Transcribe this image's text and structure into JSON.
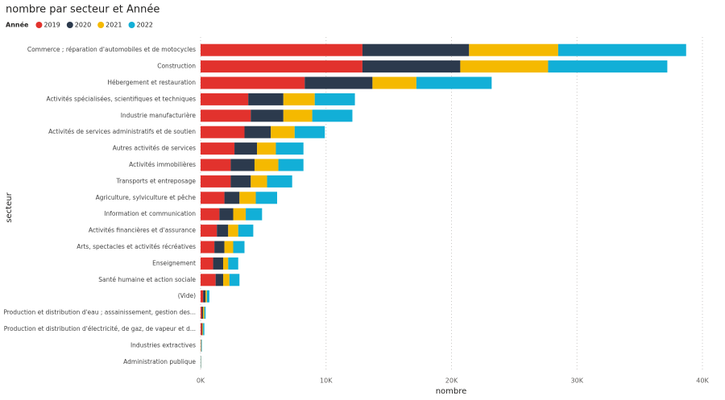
{
  "chart_data": {
    "type": "bar",
    "orientation": "horizontal",
    "stacked": true,
    "title": "nombre par secteur et Année",
    "legend_title": "Année",
    "x_label": "nombre",
    "y_label": "secteur",
    "categories": [
      "Commerce ; réparation d'automobiles et de motocycles",
      "Construction",
      "Hébergement et restauration",
      "Activités spécialisées, scientifiques et techniques",
      "Industrie manufacturière",
      "Activités de services administratifs et de soutien",
      "Autres activités de services",
      "Activités immobilières",
      "Transports et entreposage",
      "Agriculture, sylviculture et pêche",
      "Information et communication",
      "Activités financières et d'assurance",
      "Arts, spectacles et activités récréatives",
      "Enseignement",
      "Santé humaine et action sociale",
      "(Vide)",
      "Production et distribution d'eau ; assainissement, gestion des...",
      "Production et distribution d'électricité, de gaz, de vapeur et d...",
      "Industries extractives",
      "Administration publique"
    ],
    "series": [
      {
        "name": "2019",
        "color": "#e2322d",
        "values": [
          12900,
          12900,
          8300,
          3800,
          4000,
          3500,
          2700,
          2400,
          2400,
          1900,
          1500,
          1300,
          1100,
          1000,
          1200,
          200,
          100,
          100,
          20,
          10
        ]
      },
      {
        "name": "2020",
        "color": "#2c3a4d",
        "values": [
          8500,
          7800,
          5400,
          2800,
          2600,
          2100,
          1800,
          1900,
          1600,
          1200,
          1100,
          900,
          800,
          800,
          600,
          200,
          100,
          50,
          20,
          10
        ]
      },
      {
        "name": "2021",
        "color": "#f5b900",
        "values": [
          7100,
          7000,
          3500,
          2500,
          2300,
          1900,
          1500,
          1900,
          1300,
          1300,
          1000,
          800,
          700,
          400,
          500,
          100,
          100,
          50,
          20,
          10
        ]
      },
      {
        "name": "2022",
        "color": "#12afd7",
        "values": [
          10200,
          9500,
          6000,
          3200,
          3200,
          2400,
          2200,
          2000,
          2000,
          1700,
          1300,
          1200,
          900,
          800,
          800,
          200,
          100,
          100,
          40,
          20
        ]
      }
    ],
    "xlim": [
      0,
      40000
    ],
    "xticks": [
      {
        "value": 0,
        "label": "0K"
      },
      {
        "value": 10000,
        "label": "10K"
      },
      {
        "value": 20000,
        "label": "20K"
      },
      {
        "value": 30000,
        "label": "30K"
      },
      {
        "value": 40000,
        "label": "40K"
      }
    ],
    "grid": true,
    "legend_position": "top-left"
  }
}
